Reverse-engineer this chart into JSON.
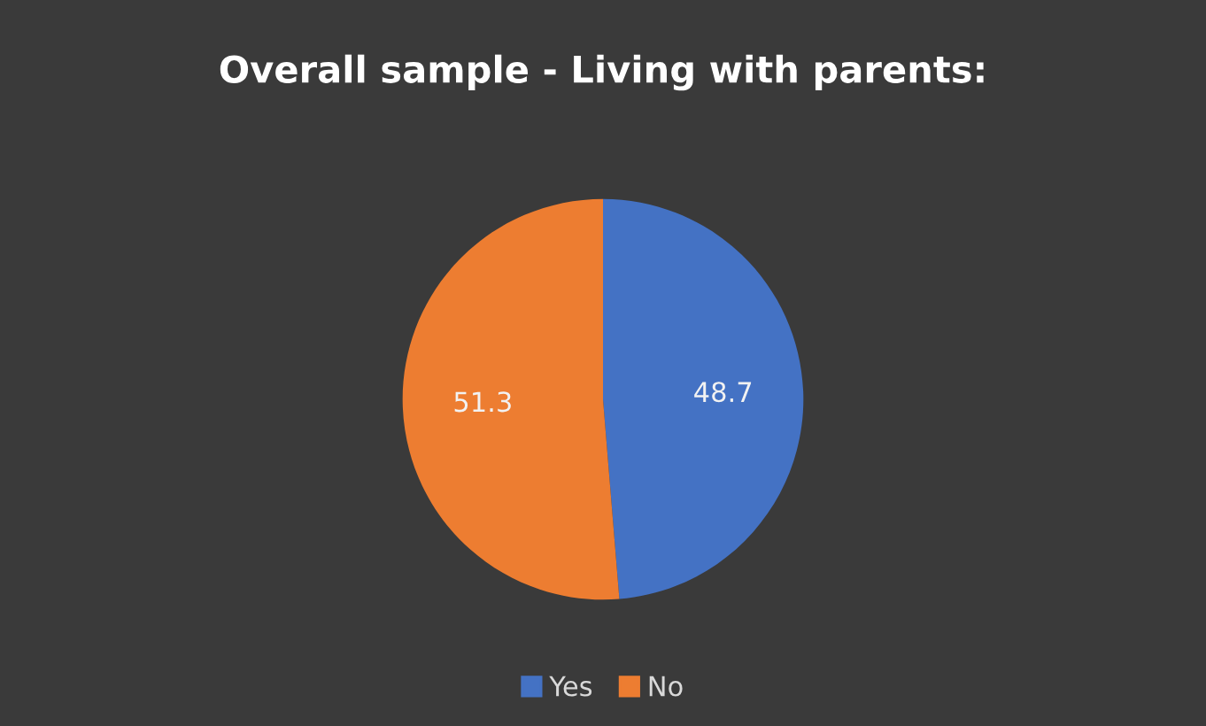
{
  "chart_data": {
    "type": "pie",
    "title": "Overall sample - Living with parents:",
    "categories": [
      "Yes",
      "No"
    ],
    "values": [
      48.7,
      51.3
    ],
    "colors": [
      "#4472c4",
      "#ed7d31"
    ],
    "data_labels": true,
    "legend": "bottom"
  }
}
